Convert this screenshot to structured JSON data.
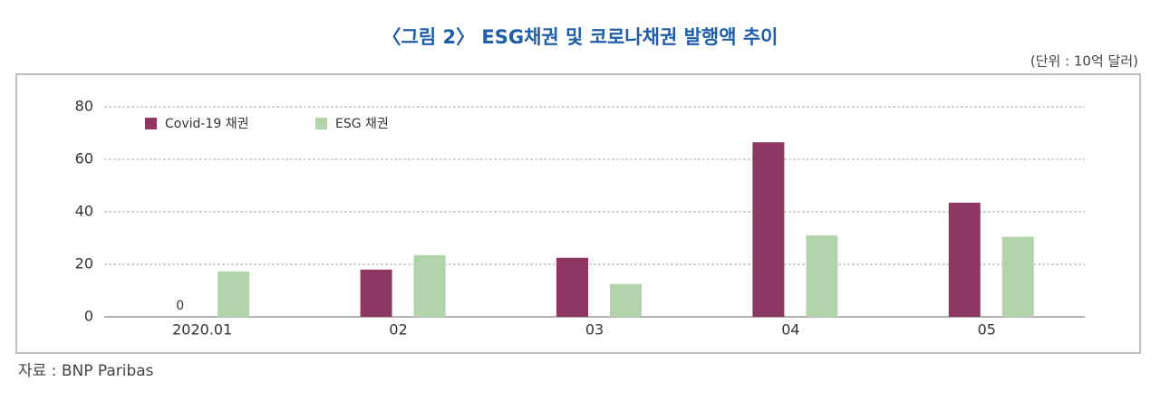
{
  "chart_data": {
    "type": "bar",
    "title": "〈그림 2〉 ESG채권 및 코로나채권 발행액 추이",
    "subtitle": "(단위 : 10억 달러)",
    "source": "자료 : BNP Paribas",
    "categories": [
      "2020.01",
      "02",
      "03",
      "04",
      "05"
    ],
    "series": [
      {
        "name": "Covid-19 채권",
        "color": "#8e3762",
        "values": [
          0,
          18,
          22.5,
          66.5,
          43.5
        ],
        "value_labels": [
          "0",
          null,
          null,
          null,
          null
        ]
      },
      {
        "name": "ESG 채권",
        "color": "#b2d3ab",
        "values": [
          17.3,
          23.5,
          12.5,
          31,
          30.5
        ]
      }
    ],
    "ylim": [
      0,
      80
    ],
    "yticks": [
      0,
      20,
      40,
      60,
      80
    ],
    "grid": true,
    "legend": "top-left"
  }
}
